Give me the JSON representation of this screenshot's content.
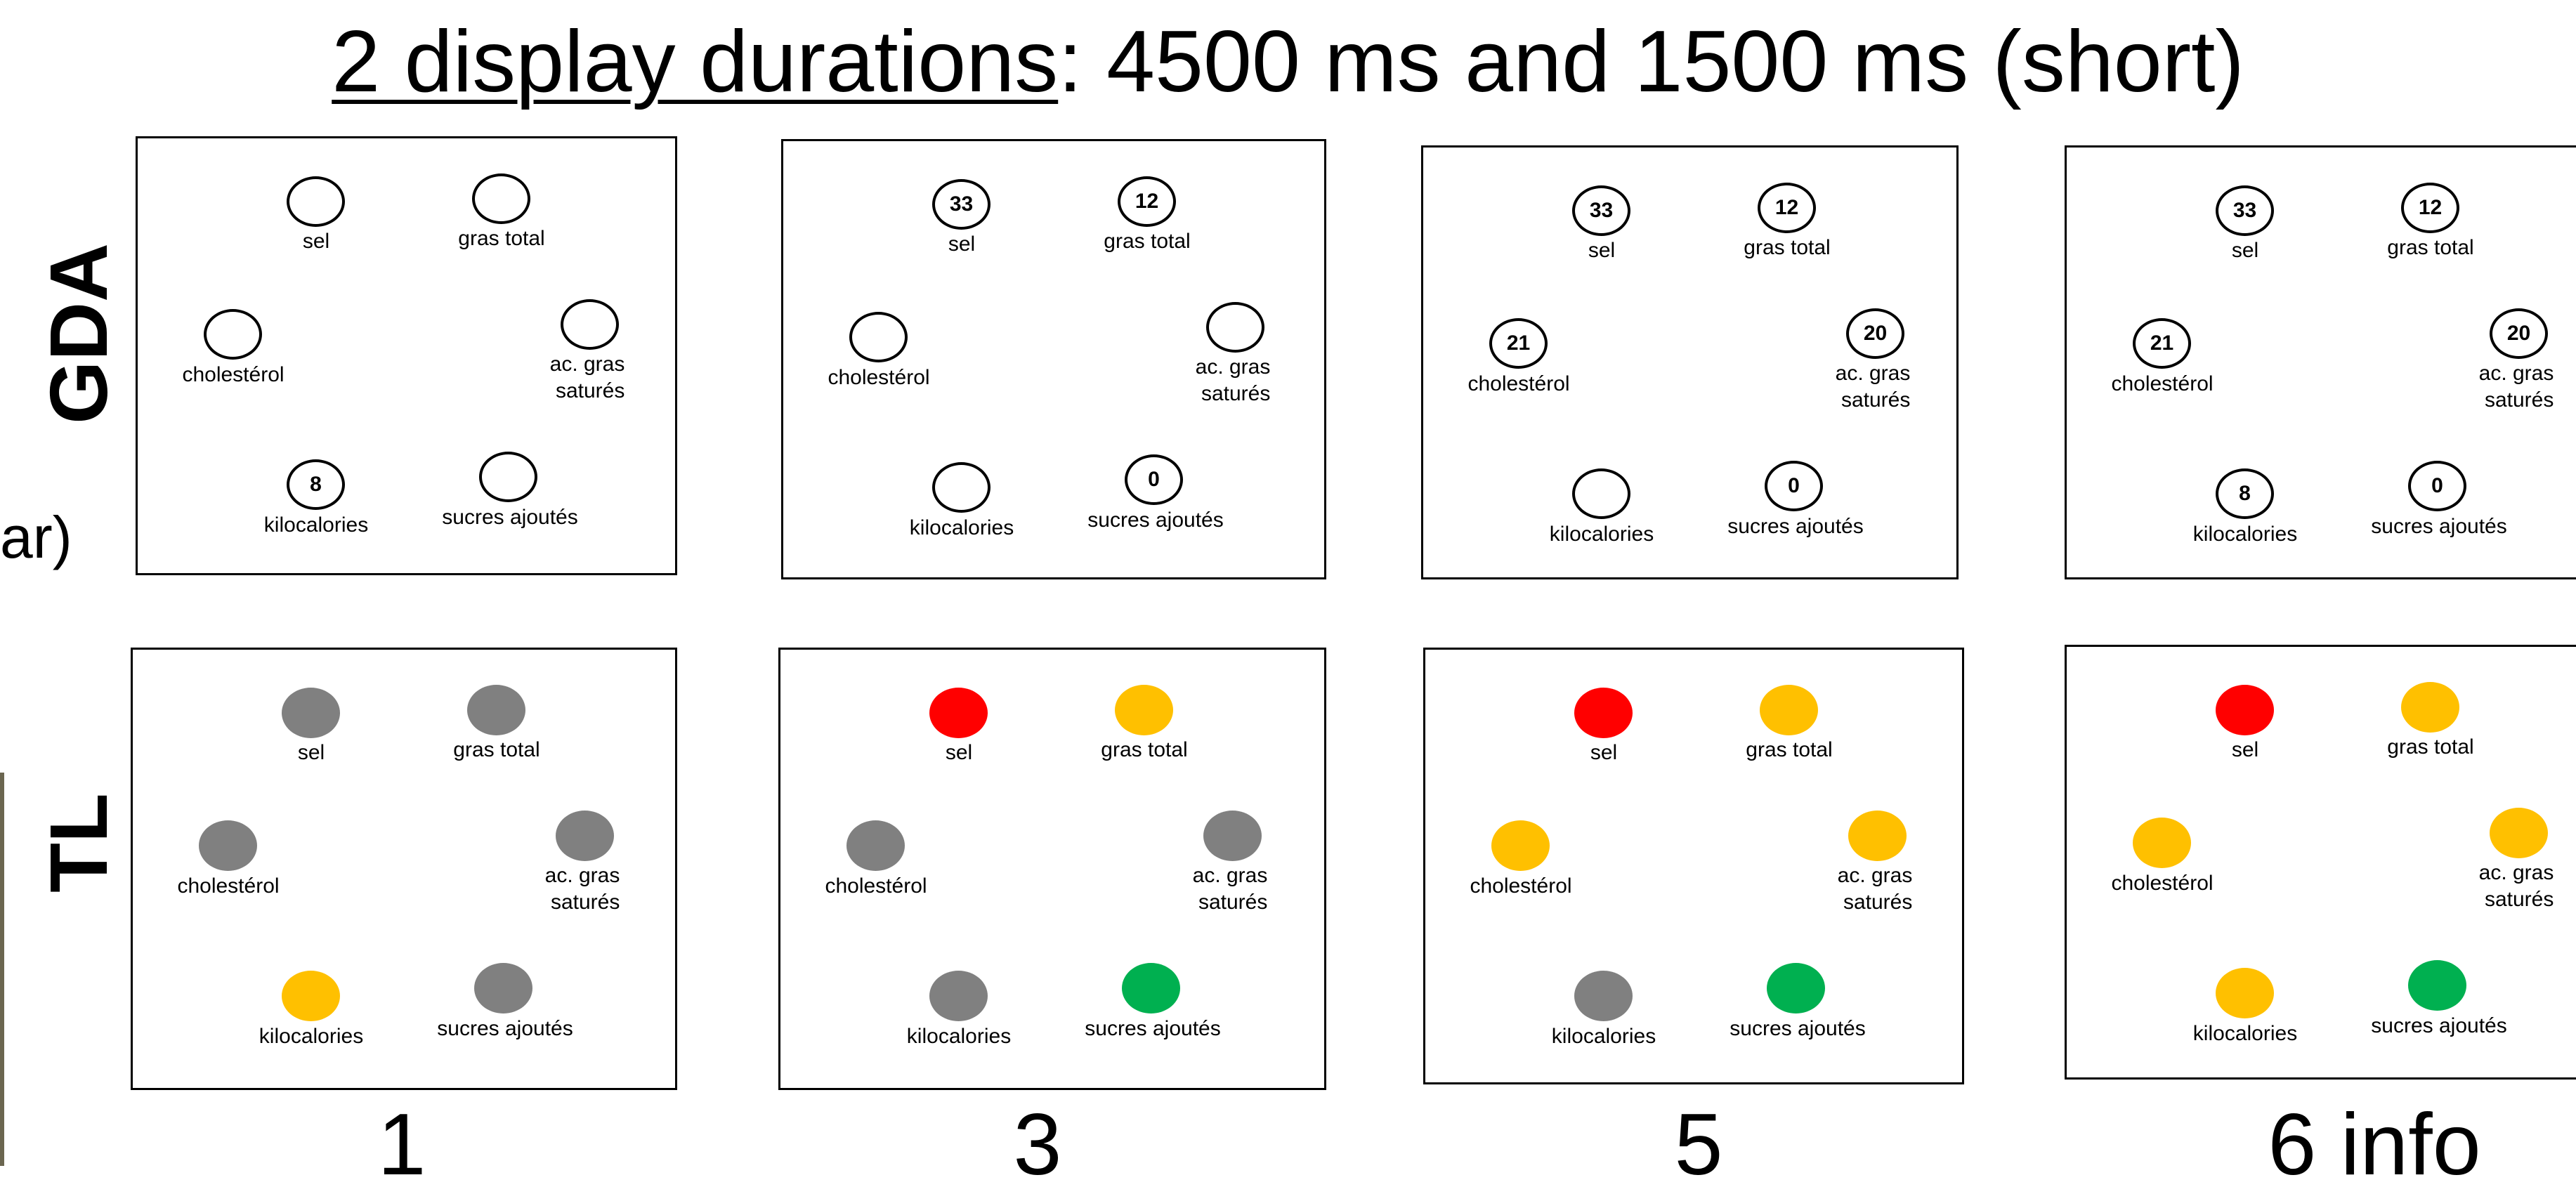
{
  "title": {
    "underlined": "2 display durations",
    "rest": ": 4500 ms and 1500 ms (short)"
  },
  "side_fragment": "ar)",
  "row_labels": [
    "GDA",
    "TL"
  ],
  "column_labels": [
    "1",
    "3",
    "5",
    "6 info"
  ],
  "nutrients": {
    "sel": "sel",
    "gras_total": "gras total",
    "cholesterol": "cholestérol",
    "ac_gras_satures": "ac. gras\nsaturés",
    "kilocalories": "kilocalories",
    "sucres_ajoutes": "sucres ajoutés"
  },
  "colors": {
    "gray": "#808080",
    "red": "#ff0000",
    "amber": "#ffc000",
    "green": "#00b050"
  },
  "gda_values": [
    {
      "sel": "",
      "gras_total": "",
      "cholesterol": "",
      "ac_gras_satures": "",
      "kilocalories": "8",
      "sucres_ajoutes": ""
    },
    {
      "sel": "33",
      "gras_total": "12",
      "cholesterol": "",
      "ac_gras_satures": "",
      "kilocalories": "",
      "sucres_ajoutes": "0"
    },
    {
      "sel": "33",
      "gras_total": "12",
      "cholesterol": "21",
      "ac_gras_satures": "20",
      "kilocalories": "",
      "sucres_ajoutes": "0"
    },
    {
      "sel": "33",
      "gras_total": "12",
      "cholesterol": "21",
      "ac_gras_satures": "20",
      "kilocalories": "8",
      "sucres_ajoutes": "0"
    }
  ],
  "tl_colors": [
    {
      "sel": "gray",
      "gras_total": "gray",
      "cholesterol": "gray",
      "ac_gras_satures": "gray",
      "kilocalories": "amber",
      "sucres_ajoutes": "gray"
    },
    {
      "sel": "red",
      "gras_total": "amber",
      "cholesterol": "gray",
      "ac_gras_satures": "gray",
      "kilocalories": "gray",
      "sucres_ajoutes": "green"
    },
    {
      "sel": "red",
      "gras_total": "amber",
      "cholesterol": "amber",
      "ac_gras_satures": "amber",
      "kilocalories": "gray",
      "sucres_ajoutes": "green"
    },
    {
      "sel": "red",
      "gras_total": "amber",
      "cholesterol": "amber",
      "ac_gras_satures": "amber",
      "kilocalories": "amber",
      "sucres_ajoutes": "green"
    }
  ]
}
